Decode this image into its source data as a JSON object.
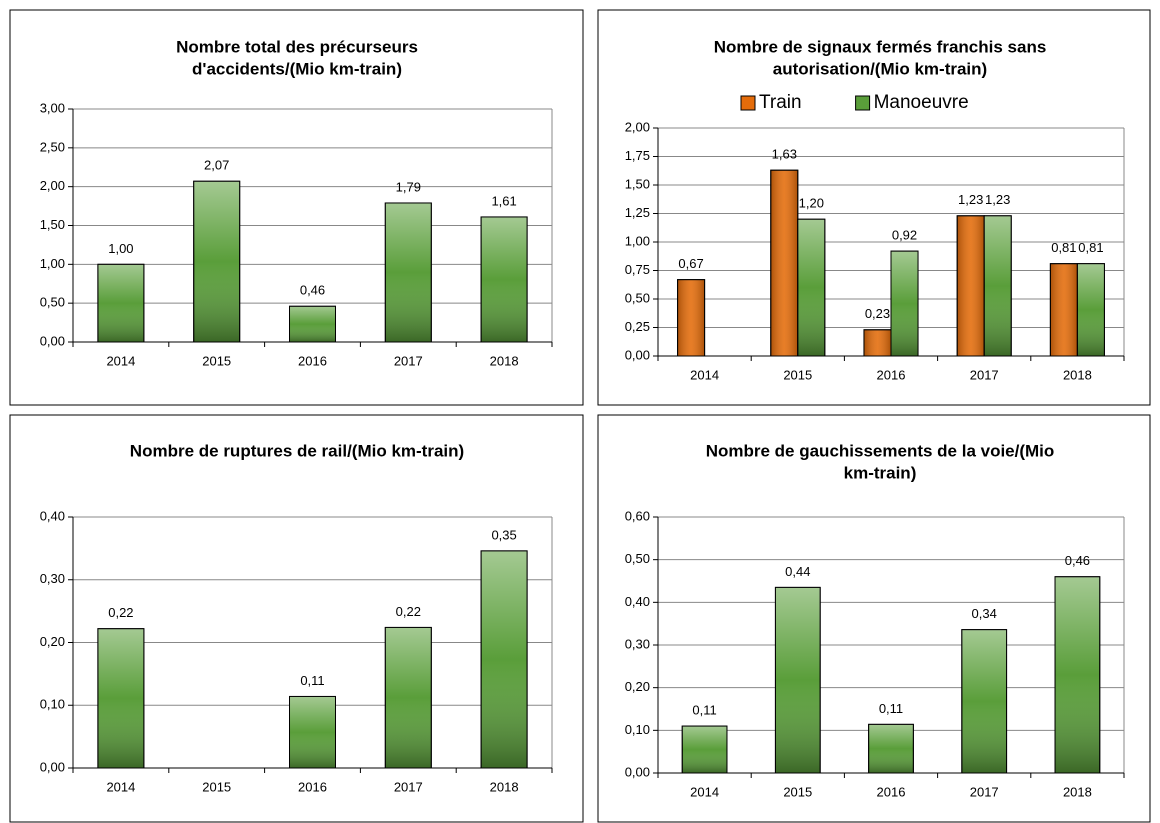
{
  "chart_data": [
    {
      "type": "bar",
      "title": [
        "Nombre total des précurseurs",
        "d'accidents/(Mio km-train)"
      ],
      "categories": [
        "2014",
        "2015",
        "2016",
        "2017",
        "2018"
      ],
      "values": [
        1.0,
        2.07,
        0.46,
        1.79,
        1.61
      ],
      "value_labels": [
        "1,00",
        "2,07",
        "0,46",
        "1,79",
        "1,61"
      ],
      "color": "#5a9e3a",
      "ylim": [
        0,
        3
      ],
      "yticks": [
        {
          "value": 0,
          "label": "0,00"
        },
        {
          "value": 0.5,
          "label": "0,50"
        },
        {
          "value": 1,
          "label": "1,00"
        },
        {
          "value": 1.5,
          "label": "1,50"
        },
        {
          "value": 2,
          "label": "2,00"
        },
        {
          "value": 2.5,
          "label": "2,50"
        },
        {
          "value": 3,
          "label": "3,00"
        }
      ],
      "grid": true
    },
    {
      "type": "bar",
      "title": [
        "Nombre de signaux fermés franchis sans",
        "autorisation/(Mio km-train)"
      ],
      "categories": [
        "2014",
        "2015",
        "2016",
        "2017",
        "2018"
      ],
      "series": [
        {
          "name": "Train",
          "color": "#e46c0a",
          "values": [
            0.67,
            1.63,
            0.23,
            1.23,
            0.81
          ],
          "value_labels": [
            "0,67",
            "1,63",
            "0,23",
            "1,23",
            "0,81"
          ]
        },
        {
          "name": "Manoeuvre",
          "color": "#5a9e3a",
          "values": [
            null,
            1.2,
            0.92,
            1.23,
            0.81
          ],
          "value_labels": [
            null,
            "1,20",
            "0,92",
            "1,23",
            "0,81"
          ]
        }
      ],
      "legend": "top",
      "ylim": [
        0,
        2
      ],
      "yticks": [
        {
          "value": 0,
          "label": "0,00"
        },
        {
          "value": 0.25,
          "label": "0,25"
        },
        {
          "value": 0.5,
          "label": "0,50"
        },
        {
          "value": 0.75,
          "label": "0,75"
        },
        {
          "value": 1,
          "label": "1,00"
        },
        {
          "value": 1.25,
          "label": "1,25"
        },
        {
          "value": 1.5,
          "label": "1,50"
        },
        {
          "value": 1.75,
          "label": "1,75"
        },
        {
          "value": 2,
          "label": "2,00"
        }
      ],
      "grid": true
    },
    {
      "type": "bar",
      "title": [
        "Nombre de ruptures de rail/(Mio km-train)"
      ],
      "categories": [
        "2014",
        "2015",
        "2016",
        "2017",
        "2018"
      ],
      "values": [
        0.222,
        null,
        0.114,
        0.224,
        0.346
      ],
      "value_labels": [
        "0,22",
        null,
        "0,11",
        "0,22",
        "0,35"
      ],
      "color": "#5a9e3a",
      "ylim": [
        0,
        0.4
      ],
      "yticks": [
        {
          "value": 0,
          "label": "0,00"
        },
        {
          "value": 0.1,
          "label": "0,10"
        },
        {
          "value": 0.2,
          "label": "0,20"
        },
        {
          "value": 0.3,
          "label": "0,30"
        },
        {
          "value": 0.4,
          "label": "0,40"
        }
      ],
      "grid": true
    },
    {
      "type": "bar",
      "title": [
        "Nombre de gauchissements de la voie/(Mio",
        "km-train)"
      ],
      "categories": [
        "2014",
        "2015",
        "2016",
        "2017",
        "2018"
      ],
      "values": [
        0.11,
        0.435,
        0.114,
        0.336,
        0.46
      ],
      "value_labels": [
        "0,11",
        "0,44",
        "0,11",
        "0,34",
        "0,46"
      ],
      "color": "#5a9e3a",
      "ylim": [
        0,
        0.6
      ],
      "yticks": [
        {
          "value": 0,
          "label": "0,00"
        },
        {
          "value": 0.1,
          "label": "0,10"
        },
        {
          "value": 0.2,
          "label": "0,20"
        },
        {
          "value": 0.3,
          "label": "0,30"
        },
        {
          "value": 0.4,
          "label": "0,40"
        },
        {
          "value": 0.5,
          "label": "0,50"
        },
        {
          "value": 0.6,
          "label": "0,60"
        }
      ],
      "grid": true
    }
  ]
}
